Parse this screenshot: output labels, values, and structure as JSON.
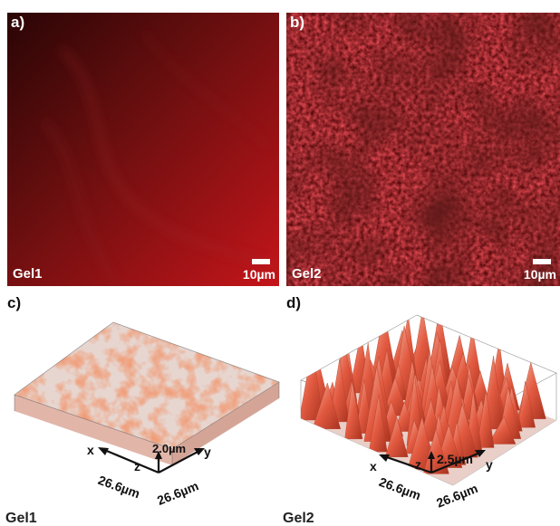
{
  "panels": {
    "a": {
      "label": "a)",
      "gel": "Gel1",
      "scale": "10µm"
    },
    "b": {
      "label": "b)",
      "gel": "Gel2",
      "scale": "10µm"
    },
    "c": {
      "label": "c)",
      "axis_x": "x",
      "axis_y": "y",
      "axis_z": "z",
      "z_dim": "2.0µm",
      "x_dim": "26.6µm",
      "y_dim": "26.6µm",
      "gel": "Gel1"
    },
    "d": {
      "label": "d)",
      "axis_x": "x",
      "axis_y": "y",
      "axis_z": "z",
      "z_dim": "2.5µm",
      "x_dim": "26.6µm",
      "y_dim": "26.6µm",
      "gel": "Gel2"
    }
  },
  "colors": {
    "fluorescence": "#c4151a",
    "render": "#e0552e"
  }
}
